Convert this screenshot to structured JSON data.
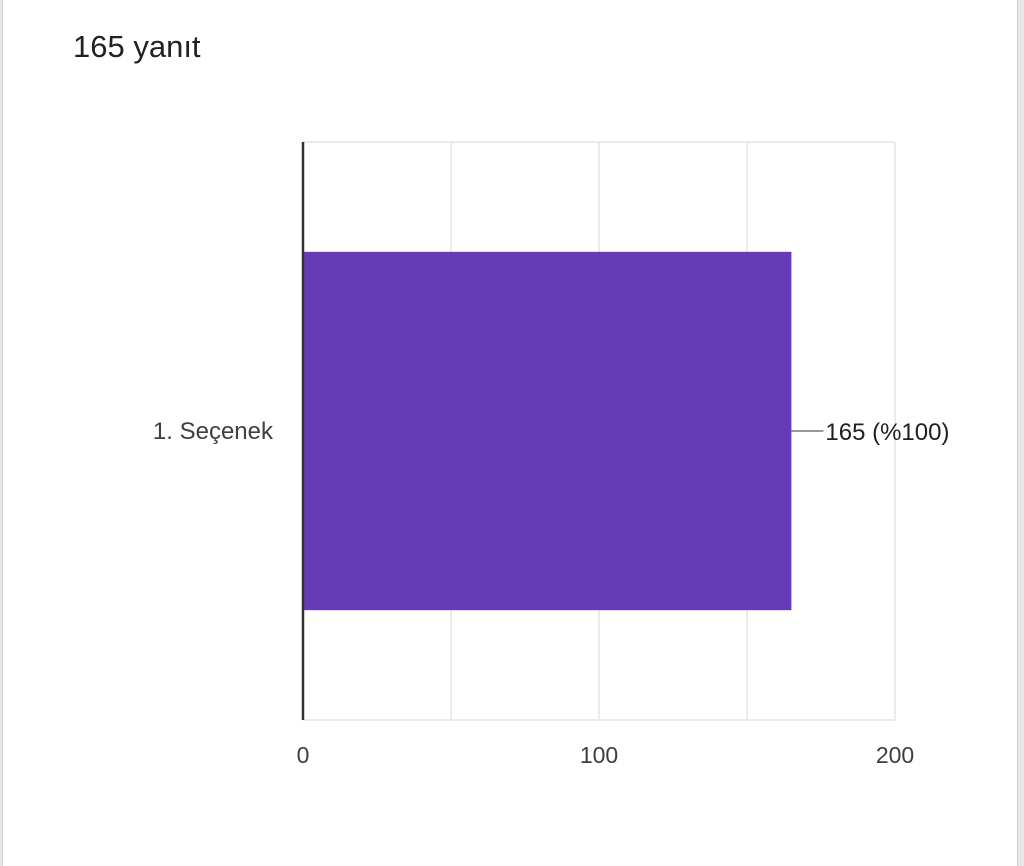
{
  "header": {
    "response_count": "165 yanıt"
  },
  "colors": {
    "bar": "#673ab7",
    "grid": "#ebebeb",
    "axis": "#333333",
    "text": "#3c4043",
    "leader": "#999999"
  },
  "chart_data": {
    "type": "bar",
    "orientation": "horizontal",
    "categories": [
      "1. Seçenek"
    ],
    "values": [
      165
    ],
    "data_labels": [
      "165 (%100)"
    ],
    "xlim": [
      0,
      200
    ],
    "x_ticks": [
      0,
      100,
      200
    ],
    "x_tick_labels": [
      "0",
      "100",
      "200"
    ],
    "grid": true,
    "legend": "none"
  }
}
